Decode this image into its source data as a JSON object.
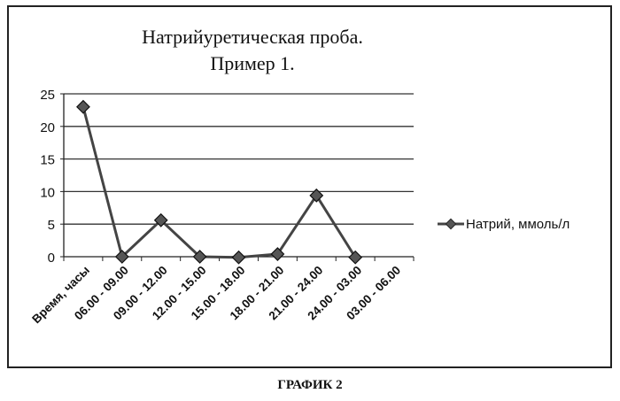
{
  "chart_data": {
    "type": "line",
    "title_lines": [
      "Натрийуретическая проба.",
      "Пример 1."
    ],
    "categories": [
      "Время, часы",
      "06.00 - 09.00",
      "09.00 - 12.00",
      "12.00 - 15.00",
      "15.00 - 18.00",
      "18.00 - 21.00",
      "21.00 - 24.00",
      "24.00 - 03.00",
      "03.00 - 06.00"
    ],
    "series": [
      {
        "name": "Натрий, ммоль/л",
        "values": [
          23,
          0,
          5.6,
          0,
          -0.1,
          0.4,
          9.4,
          -0.1,
          null
        ],
        "color": "#444444"
      }
    ],
    "y_ticks": [
      0,
      5,
      10,
      15,
      20,
      25
    ],
    "ylim": [
      0,
      25
    ],
    "grid": true,
    "legend_position": "right"
  },
  "caption": "ГРАФИК 2"
}
